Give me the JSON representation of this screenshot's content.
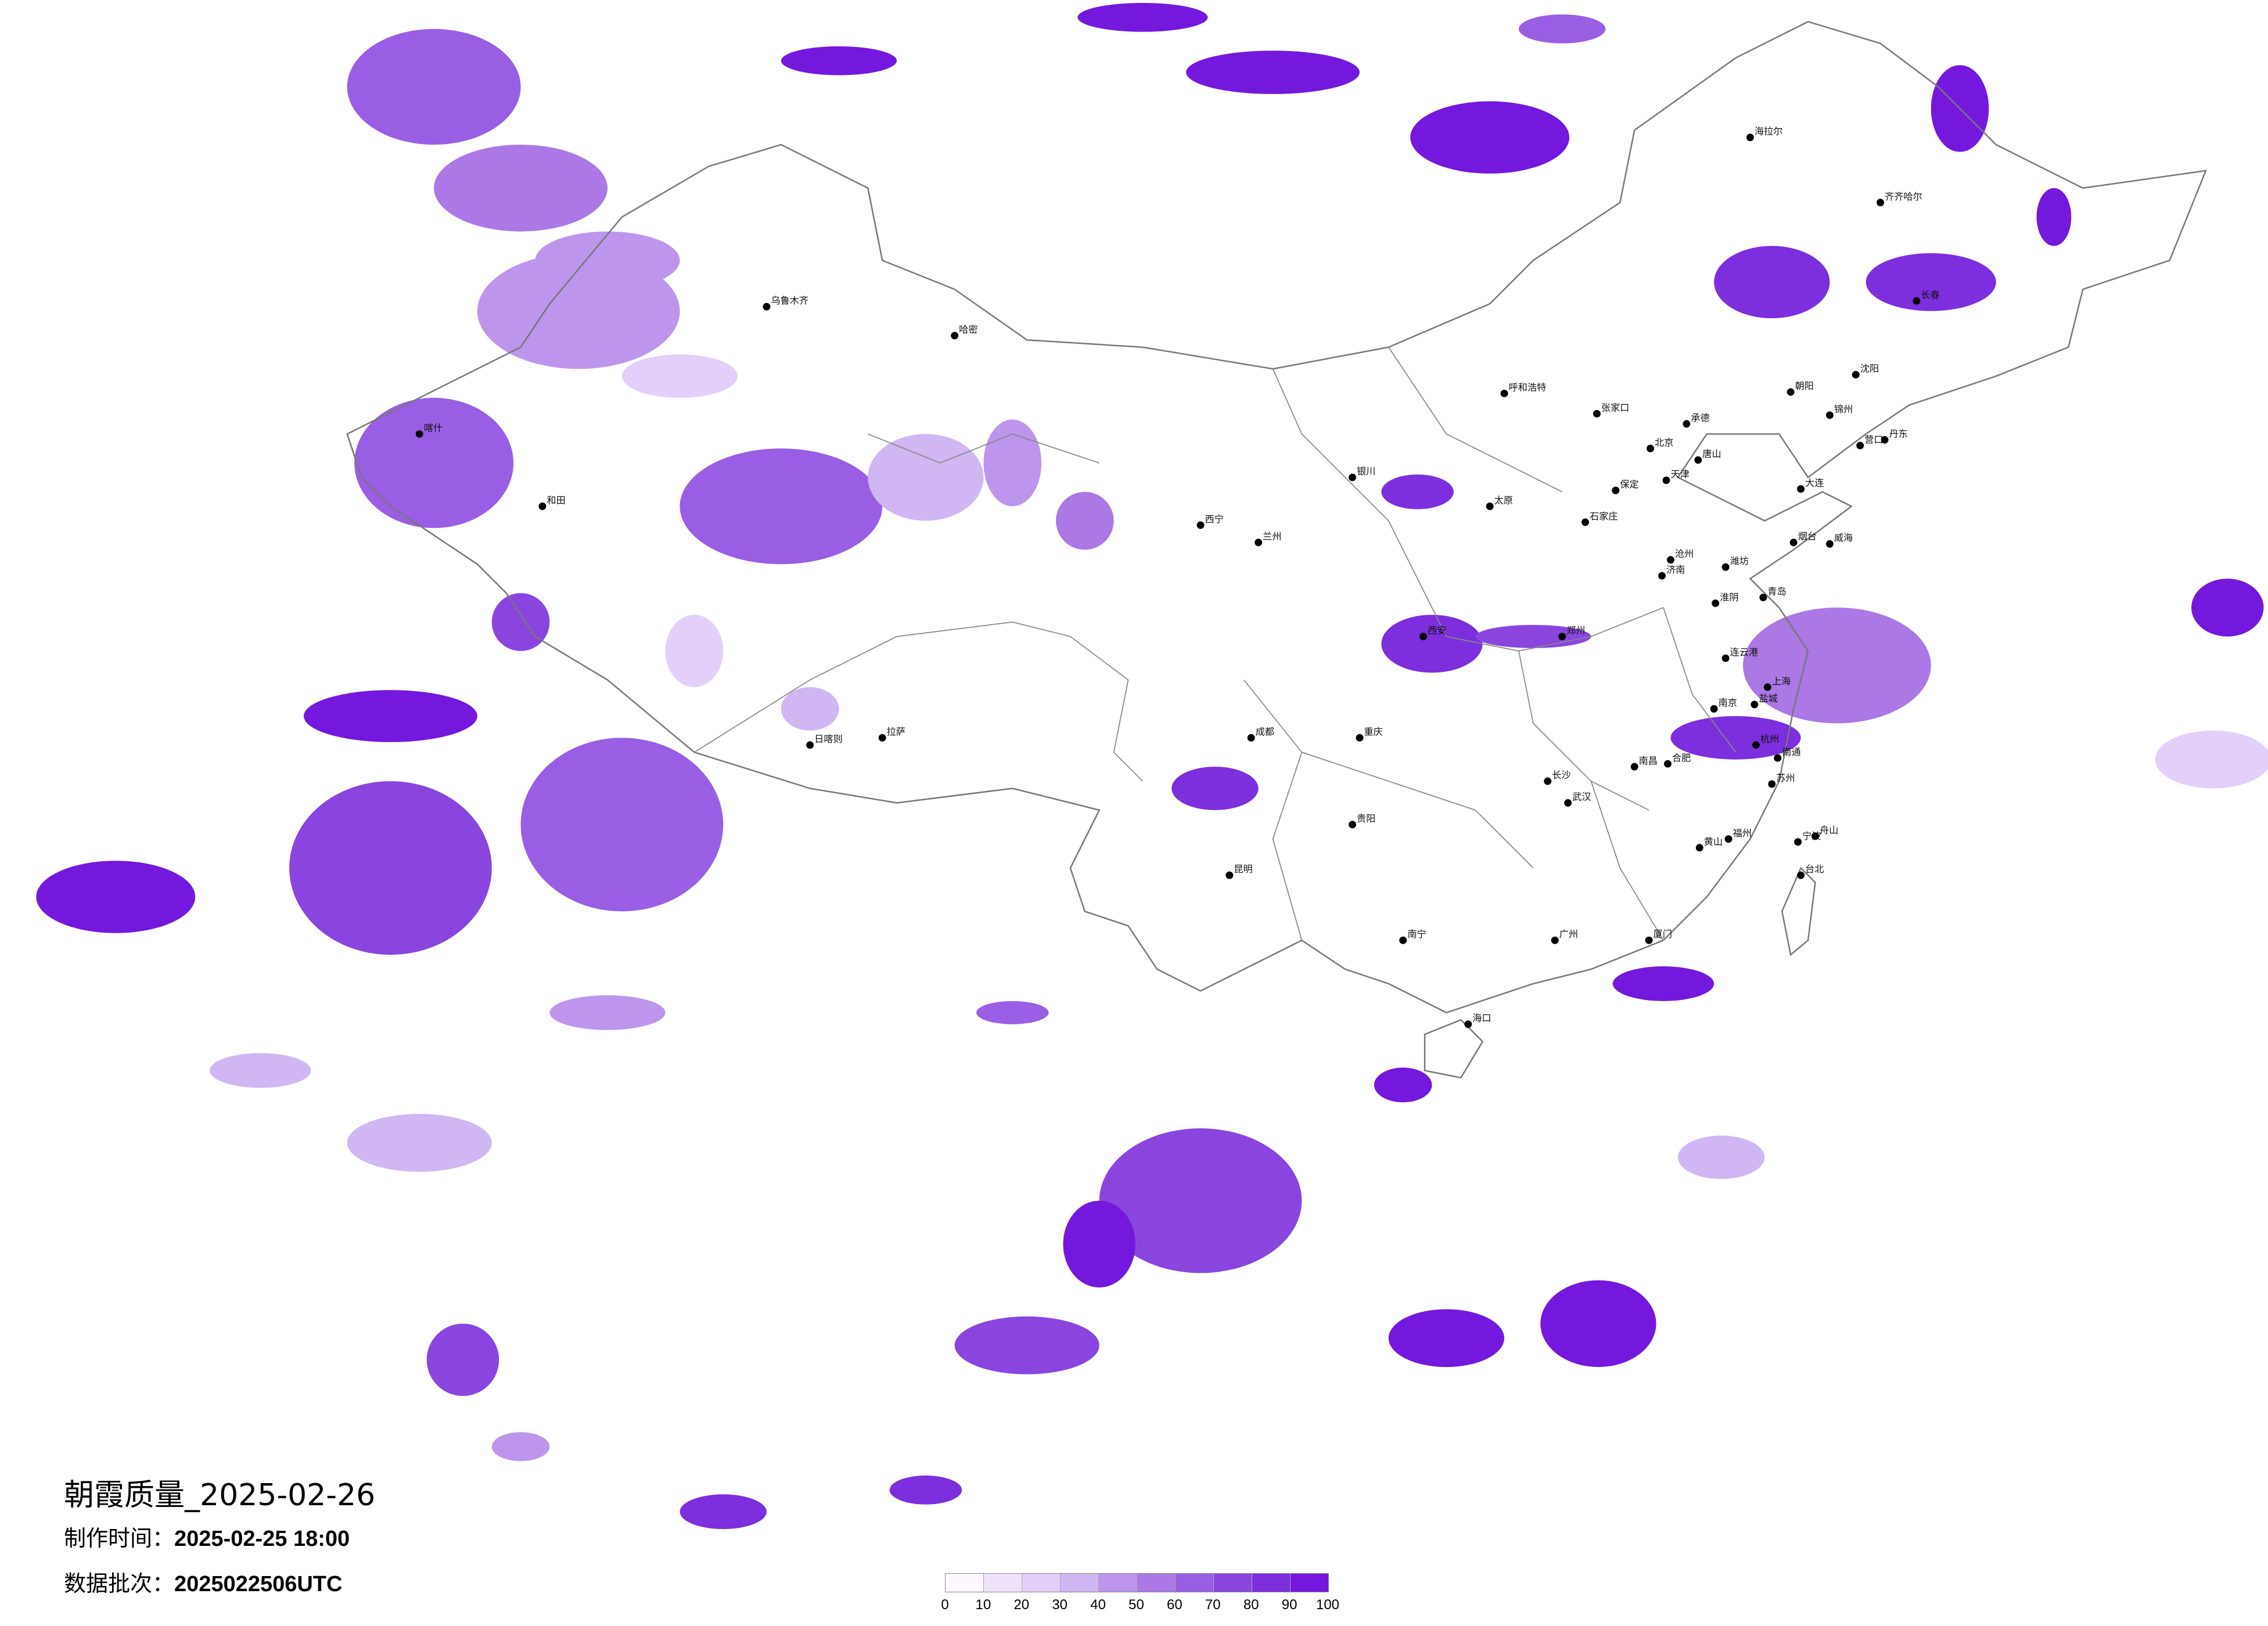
{
  "title": {
    "product": "朝霞质量_2025-02-26"
  },
  "info": {
    "made_label": "制作时间：",
    "made_value": "2025-02-25 18:00",
    "batch_label": "数据批次：",
    "batch_value": "2025022506UTC"
  },
  "legend": {
    "ticks": [
      "0",
      "10",
      "20",
      "30",
      "40",
      "50",
      "60",
      "70",
      "80",
      "90",
      "100"
    ],
    "colors": [
      "#fdf8ff",
      "#efe3fb",
      "#e2cffa",
      "#d0b6f2",
      "#bd95ec",
      "#ab78e5",
      "#9a5ee4",
      "#8a45df",
      "#7d2edd",
      "#7518dd"
    ]
  },
  "colors": {
    "border": "#777777",
    "city_dot": "#000000",
    "background": "#ffffff"
  },
  "cities": [
    "北京",
    "天津",
    "上海",
    "南京",
    "杭州",
    "合肥",
    "济南",
    "青岛",
    "大连",
    "沈阳",
    "石家庄",
    "张家口",
    "唐山",
    "保定",
    "丹东",
    "烟台",
    "威海",
    "连云港",
    "盐城",
    "南通",
    "苏州",
    "宁波",
    "舟山",
    "黄山",
    "呼和浩特",
    "西安",
    "成都",
    "重庆",
    "武汉",
    "长沙",
    "广州",
    "昆明",
    "贵阳",
    "南宁",
    "海口",
    "福州",
    "厦门",
    "台北",
    "拉萨",
    "日喀则",
    "乌鲁木齐",
    "兰州",
    "西宁",
    "银川",
    "哈密",
    "喀什",
    "和田",
    "海拉尔",
    "齐齐哈尔",
    "长春",
    "郑州",
    "太原",
    "南昌",
    "朝阳",
    "锦州",
    "营口",
    "承德",
    "沧州",
    "潍坊",
    "淮阴"
  ]
}
